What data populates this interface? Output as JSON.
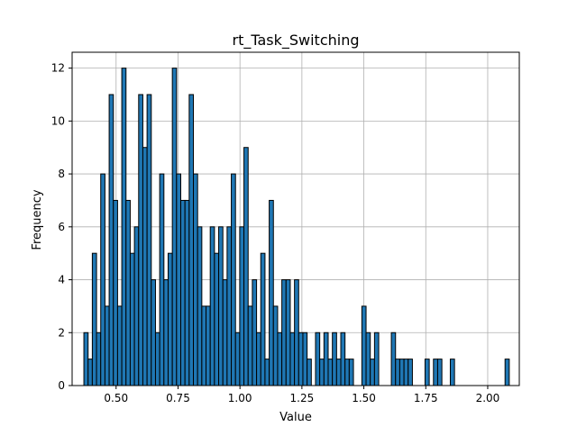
{
  "chart_data": {
    "type": "bar",
    "title": "rt_Task_Switching",
    "xlabel": "Value",
    "ylabel": "Frequency",
    "xlim": [
      0.3225,
      2.1275
    ],
    "ylim": [
      0,
      12.6
    ],
    "bin_start": 0.37,
    "bin_width": 0.017,
    "values": [
      2,
      1,
      5,
      2,
      8,
      3,
      11,
      7,
      3,
      12,
      7,
      5,
      6,
      11,
      9,
      11,
      4,
      2,
      8,
      4,
      5,
      12,
      8,
      7,
      7,
      11,
      8,
      6,
      3,
      3,
      6,
      5,
      6,
      4,
      6,
      8,
      2,
      6,
      9,
      3,
      4,
      2,
      5,
      1,
      7,
      3,
      2,
      4,
      4,
      2,
      4,
      2,
      2,
      1,
      0,
      2,
      1,
      2,
      1,
      2,
      1,
      2,
      1,
      1,
      0,
      0,
      3,
      2,
      1,
      2,
      0,
      0,
      0,
      2,
      1,
      1,
      1,
      1,
      0,
      0,
      0,
      1,
      0,
      1,
      1,
      0,
      0,
      1,
      0,
      0,
      0,
      0,
      0,
      0,
      0,
      0,
      0,
      0,
      0,
      0,
      1
    ],
    "x_ticks": [
      0.5,
      0.75,
      1.0,
      1.25,
      1.5,
      1.75,
      2.0
    ],
    "x_tick_labels": [
      "0.50",
      "0.75",
      "1.00",
      "1.25",
      "1.50",
      "1.75",
      "2.00"
    ],
    "y_ticks": [
      0,
      2,
      4,
      6,
      8,
      10,
      12
    ],
    "y_tick_labels": [
      "0",
      "2",
      "4",
      "6",
      "8",
      "10",
      "12"
    ],
    "grid": true,
    "bar_color": "#1f77b4",
    "edge_color": "#000000"
  }
}
